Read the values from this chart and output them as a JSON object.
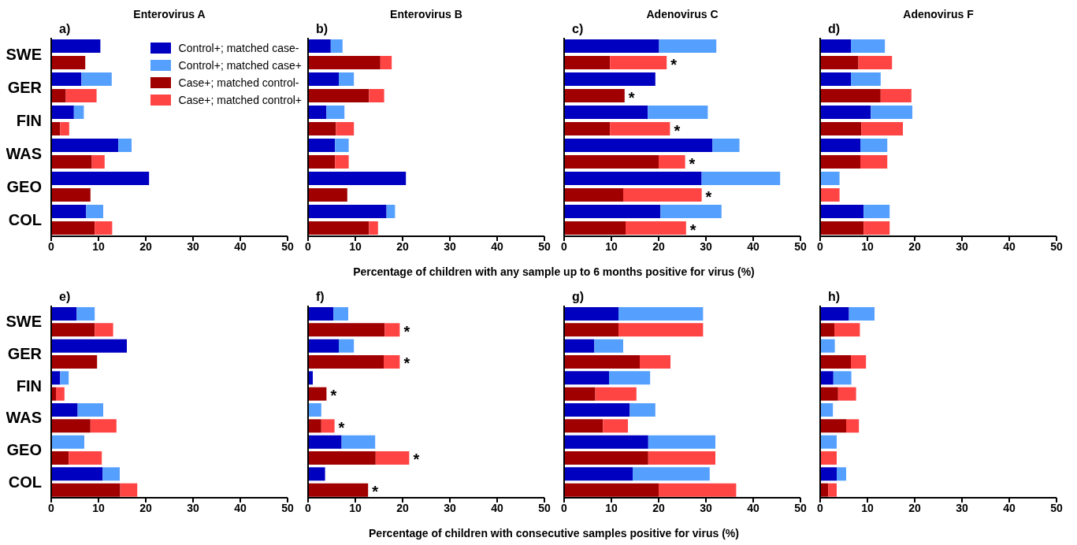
{
  "chart_data": [
    {
      "type": "bar",
      "orientation": "horizontal",
      "stacked": true,
      "title": "Enterovirus A",
      "legend": "top right",
      "categories": [
        "SWE",
        null,
        "GER",
        null,
        "FIN",
        null,
        "WAS",
        null,
        "GEO",
        null,
        "COL",
        null
      ],
      "xlim": [
        0,
        50
      ],
      "xticks": [
        0,
        10,
        20,
        30,
        40,
        50
      ],
      "annotations": [
        "a)"
      ],
      "series": [
        {
          "name": "Control+; matched case-",
          "color": "#0000c0",
          "values": [
            10.4,
            null,
            6.4,
            null,
            4.8,
            null,
            14.2,
            null,
            20.7,
            null,
            7.4,
            null
          ]
        },
        {
          "name": "Control+; matched case+",
          "color": "#55a0ff",
          "values": [
            0,
            null,
            6.4,
            null,
            2.1,
            null,
            2.8,
            null,
            0,
            null,
            3.6,
            null
          ]
        },
        {
          "name": "Case+; matched control-",
          "color": "#a00000",
          "values": [
            null,
            7.2,
            null,
            3.1,
            null,
            1.9,
            null,
            8.6,
            null,
            8.3,
            null,
            9.2
          ]
        },
        {
          "name": "Case+; matched control+",
          "color": "#ff4444",
          "values": [
            null,
            0,
            null,
            6.5,
            null,
            1.9,
            null,
            2.7,
            null,
            0,
            null,
            3.7
          ]
        }
      ]
    },
    {
      "type": "bar",
      "orientation": "horizontal",
      "stacked": true,
      "title": "Enterovirus B",
      "xlabel": "Percentage of children with any sample up to 6 months positive for virus (%)",
      "tick_labels": "x",
      "categories": [
        "SWE",
        null,
        "GER",
        null,
        "FIN",
        null,
        "WAS",
        null,
        "GEO",
        null,
        "COL",
        null
      ],
      "xlim": [
        0,
        50
      ],
      "xticks": [
        0,
        10,
        20,
        30,
        40,
        50
      ],
      "annotations": [
        "b)"
      ],
      "series": [
        {
          "color": "#0000c0",
          "values": [
            4.8,
            null,
            6.5,
            null,
            3.9,
            null,
            5.7,
            null,
            20.7,
            null,
            16.6,
            null
          ]
        },
        {
          "color": "#55a0ff",
          "values": [
            2.5,
            null,
            3.2,
            null,
            3.8,
            null,
            2.9,
            null,
            0,
            null,
            1.8,
            null
          ]
        },
        {
          "color": "#a00000",
          "values": [
            null,
            15.3,
            null,
            12.9,
            null,
            5.9,
            null,
            5.7,
            null,
            8.3,
            null,
            12.9
          ]
        },
        {
          "color": "#ff4444",
          "values": [
            null,
            2.4,
            null,
            3.2,
            null,
            3.8,
            null,
            2.9,
            null,
            0,
            null,
            1.9
          ]
        }
      ]
    },
    {
      "type": "bar",
      "orientation": "horizontal",
      "stacked": true,
      "title": "Adenovirus C",
      "tick_labels": "x",
      "categories": [
        "SWE",
        null,
        "GER",
        null,
        "FIN",
        null,
        "WAS",
        null,
        "GEO",
        null,
        "COL",
        null
      ],
      "xlim": [
        0,
        50
      ],
      "xticks": [
        0,
        10,
        20,
        30,
        40,
        50
      ],
      "annotations": [
        "c)",
        {
          "text": "*",
          "x": 21.7,
          "y": "SWE"
        },
        {
          "text": "*",
          "x": 12.8,
          "y": "GER"
        },
        {
          "text": "*",
          "x": 22.4,
          "y": "FIN"
        },
        {
          "text": "*",
          "x": 25.6,
          "y": "WAS"
        },
        {
          "text": "*",
          "x": 29.1,
          "y": "GEO"
        },
        {
          "text": "*",
          "x": 25.8,
          "y": "COL"
        }
      ],
      "series": [
        {
          "color": "#0000c0",
          "values": [
            20.1,
            null,
            19.3,
            null,
            17.7,
            null,
            31.4,
            null,
            29.1,
            null,
            20.4,
            null
          ]
        },
        {
          "color": "#55a0ff",
          "values": [
            12.1,
            null,
            0,
            null,
            12.7,
            null,
            5.7,
            null,
            16.6,
            null,
            12.9,
            null
          ]
        },
        {
          "color": "#a00000",
          "values": [
            null,
            9.7,
            null,
            12.8,
            null,
            9.7,
            null,
            20.0,
            null,
            12.5,
            null,
            13.0
          ]
        },
        {
          "color": "#ff4444",
          "values": [
            null,
            12.0,
            null,
            0,
            null,
            12.7,
            null,
            5.6,
            null,
            16.6,
            null,
            12.8
          ]
        }
      ]
    },
    {
      "type": "bar",
      "orientation": "horizontal",
      "stacked": true,
      "title": "Adenovirus F",
      "tick_labels": "x",
      "categories": [
        "SWE",
        null,
        "GER",
        null,
        "FIN",
        null,
        "WAS",
        null,
        "GEO",
        null,
        "COL",
        null
      ],
      "xlim": [
        0,
        50
      ],
      "xticks": [
        0,
        10,
        20,
        30,
        40,
        50
      ],
      "annotations": [
        "d)"
      ],
      "series": [
        {
          "color": "#0000c0",
          "values": [
            6.5,
            null,
            6.5,
            null,
            10.7,
            null,
            8.5,
            null,
            0,
            null,
            9.2,
            null
          ]
        },
        {
          "color": "#55a0ff",
          "values": [
            7.2,
            null,
            6.3,
            null,
            8.8,
            null,
            5.7,
            null,
            4.1,
            null,
            5.5,
            null
          ]
        },
        {
          "color": "#a00000",
          "values": [
            null,
            8.1,
            null,
            12.8,
            null,
            8.7,
            null,
            8.5,
            null,
            0,
            null,
            9.2
          ]
        },
        {
          "color": "#ff4444",
          "values": [
            null,
            7.1,
            null,
            6.5,
            null,
            8.8,
            null,
            5.7,
            null,
            4.1,
            null,
            5.5
          ]
        }
      ]
    },
    {
      "type": "bar",
      "orientation": "horizontal",
      "stacked": true,
      "categories": [
        "SWE",
        null,
        "GER",
        null,
        "FIN",
        null,
        "WAS",
        null,
        "GEO",
        null,
        "COL",
        null
      ],
      "xlim": [
        0,
        50
      ],
      "xticks": [
        0,
        10,
        20,
        30,
        40,
        50
      ],
      "annotations": [
        "e)"
      ],
      "series": [
        {
          "color": "#0000c0",
          "values": [
            5.4,
            null,
            16.0,
            null,
            1.9,
            null,
            5.6,
            null,
            0,
            null,
            10.9,
            null
          ]
        },
        {
          "color": "#55a0ff",
          "values": [
            3.8,
            null,
            0,
            null,
            1.8,
            null,
            5.4,
            null,
            7.0,
            null,
            3.6,
            null
          ]
        },
        {
          "color": "#a00000",
          "values": [
            null,
            9.2,
            null,
            9.7,
            null,
            1.0,
            null,
            8.3,
            null,
            3.7,
            null,
            14.6
          ]
        },
        {
          "color": "#ff4444",
          "values": [
            null,
            3.9,
            null,
            0,
            null,
            1.8,
            null,
            5.5,
            null,
            7.0,
            null,
            3.6
          ]
        }
      ]
    },
    {
      "type": "bar",
      "orientation": "horizontal",
      "stacked": true,
      "xlabel": "Percentage of children with consecutive samples positive for virus (%)",
      "tick_labels": "x",
      "categories": [
        "SWE",
        null,
        "GER",
        null,
        "FIN",
        null,
        "WAS",
        null,
        "GEO",
        null,
        "COL",
        null
      ],
      "xlim": [
        0,
        50
      ],
      "xticks": [
        0,
        10,
        20,
        30,
        40,
        50
      ],
      "annotations": [
        "f)",
        {
          "text": "*",
          "x": 19.4,
          "y": "SWE"
        },
        {
          "text": "*",
          "x": 19.4,
          "y": "GER"
        },
        {
          "text": "*",
          "x": 3.9,
          "y": "FIN"
        },
        {
          "text": "*",
          "x": 5.6,
          "y": "WAS"
        },
        {
          "text": "*",
          "x": 21.4,
          "y": "GEO"
        },
        {
          "text": "*",
          "x": 12.7,
          "y": "COL"
        }
      ],
      "series": [
        {
          "color": "#0000c0",
          "values": [
            5.4,
            null,
            6.5,
            null,
            1.0,
            null,
            0,
            null,
            7.1,
            null,
            3.6,
            null
          ]
        },
        {
          "color": "#55a0ff",
          "values": [
            3.1,
            null,
            3.2,
            null,
            0,
            null,
            2.8,
            null,
            7.1,
            null,
            0,
            null
          ]
        },
        {
          "color": "#a00000",
          "values": [
            null,
            16.2,
            null,
            16.0,
            null,
            3.9,
            null,
            2.8,
            null,
            14.3,
            null,
            12.7
          ]
        },
        {
          "color": "#ff4444",
          "values": [
            null,
            3.2,
            null,
            3.4,
            null,
            0,
            null,
            2.8,
            null,
            7.1,
            null,
            0
          ]
        }
      ]
    },
    {
      "type": "bar",
      "orientation": "horizontal",
      "stacked": true,
      "tick_labels": "x",
      "categories": [
        "SWE",
        null,
        "GER",
        null,
        "FIN",
        null,
        "WAS",
        null,
        "GEO",
        null,
        "COL",
        null
      ],
      "xlim": [
        0,
        50
      ],
      "xticks": [
        0,
        10,
        20,
        30,
        40,
        50
      ],
      "annotations": [
        "g)"
      ],
      "series": [
        {
          "color": "#0000c0",
          "values": [
            11.5,
            null,
            6.4,
            null,
            9.5,
            null,
            13.9,
            null,
            17.8,
            null,
            14.5,
            null
          ]
        },
        {
          "color": "#55a0ff",
          "values": [
            17.9,
            null,
            6.1,
            null,
            8.7,
            null,
            5.4,
            null,
            14.2,
            null,
            16.3,
            null
          ]
        },
        {
          "color": "#a00000",
          "values": [
            null,
            11.5,
            null,
            16.0,
            null,
            6.6,
            null,
            8.2,
            null,
            17.8,
            null,
            20.0
          ]
        },
        {
          "color": "#ff4444",
          "values": [
            null,
            17.9,
            null,
            6.5,
            null,
            8.7,
            null,
            5.3,
            null,
            14.2,
            null,
            16.4
          ]
        }
      ]
    },
    {
      "type": "bar",
      "orientation": "horizontal",
      "stacked": true,
      "tick_labels": "x",
      "categories": [
        "SWE",
        null,
        "GER",
        null,
        "FIN",
        null,
        "WAS",
        null,
        "GEO",
        null,
        "COL",
        null
      ],
      "xlim": [
        0,
        50
      ],
      "xticks": [
        0,
        10,
        20,
        30,
        40,
        50
      ],
      "annotations": [
        "h)"
      ],
      "series": [
        {
          "color": "#0000c0",
          "values": [
            6.1,
            null,
            0,
            null,
            2.8,
            null,
            0,
            null,
            0,
            null,
            3.5,
            null
          ]
        },
        {
          "color": "#55a0ff",
          "values": [
            5.4,
            null,
            3.1,
            null,
            3.8,
            null,
            2.7,
            null,
            3.5,
            null,
            2.0,
            null
          ]
        },
        {
          "color": "#a00000",
          "values": [
            null,
            3.0,
            null,
            6.5,
            null,
            3.8,
            null,
            5.5,
            null,
            0,
            null,
            1.7
          ]
        },
        {
          "color": "#ff4444",
          "values": [
            null,
            5.4,
            null,
            3.2,
            null,
            3.8,
            null,
            2.7,
            null,
            3.5,
            null,
            1.8
          ]
        }
      ]
    }
  ]
}
